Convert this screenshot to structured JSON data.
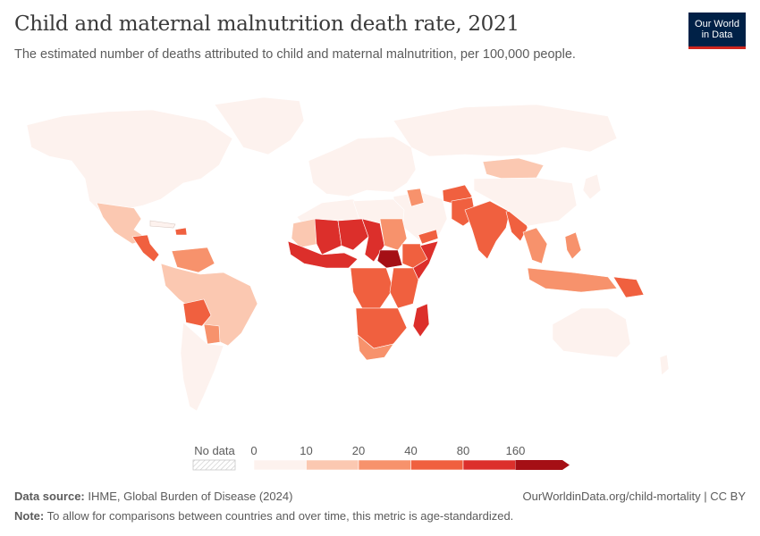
{
  "header": {
    "title": "Child and maternal malnutrition death rate, 2021",
    "subtitle": "The estimated number of deaths attributed to child and maternal malnutrition, per 100,000 people."
  },
  "logo": {
    "line1": "Our World",
    "line2": "in Data",
    "bg_color": "#002147",
    "accent_color": "#ce261e"
  },
  "legend": {
    "no_data_label": "No data",
    "ticks": [
      "0",
      "10",
      "20",
      "40",
      "80",
      "160"
    ],
    "colors": [
      "#fdf2ee",
      "#fbc8b1",
      "#f7926c",
      "#f0603f",
      "#dc2f2b",
      "#a50f15"
    ]
  },
  "footer": {
    "source_label": "Data source:",
    "source_text": "IHME, Global Burden of Disease (2024)",
    "note_label": "Note:",
    "note_text": "To allow for comparisons between countries and over time, this metric is age-standardized.",
    "link_text": "OurWorldinData.org/child-mortality | CC BY"
  },
  "map": {
    "regions": [
      {
        "name": "North America",
        "bin": 0
      },
      {
        "name": "Mexico",
        "bin": 1
      },
      {
        "name": "Central America",
        "bin": 3
      },
      {
        "name": "Haiti",
        "bin": 3
      },
      {
        "name": "Venezuela",
        "bin": 2
      },
      {
        "name": "South America",
        "bin": 1
      },
      {
        "name": "Bolivia",
        "bin": 3
      },
      {
        "name": "Paraguay",
        "bin": 2
      },
      {
        "name": "Argentina",
        "bin": 0
      },
      {
        "name": "Europe",
        "bin": 0
      },
      {
        "name": "Russia",
        "bin": 0
      },
      {
        "name": "Greenland",
        "bin": 0
      },
      {
        "name": "North Africa",
        "bin": 0
      },
      {
        "name": "Libya / Egypt",
        "bin": 0
      },
      {
        "name": "Mauritania",
        "bin": 1
      },
      {
        "name": "Mali",
        "bin": 4
      },
      {
        "name": "Niger",
        "bin": 4
      },
      {
        "name": "Chad",
        "bin": 4
      },
      {
        "name": "West Africa coast",
        "bin": 4
      },
      {
        "name": "Sudan",
        "bin": 2
      },
      {
        "name": "South Sudan",
        "bin": 5
      },
      {
        "name": "Ethiopia",
        "bin": 3
      },
      {
        "name": "Somalia",
        "bin": 4
      },
      {
        "name": "Central Africa",
        "bin": 3
      },
      {
        "name": "East Africa",
        "bin": 3
      },
      {
        "name": "Southern Africa",
        "bin": 3
      },
      {
        "name": "South Africa",
        "bin": 2
      },
      {
        "name": "Madagascar",
        "bin": 4
      },
      {
        "name": "Middle East",
        "bin": 0
      },
      {
        "name": "Yemen",
        "bin": 3
      },
      {
        "name": "Iraq",
        "bin": 2
      },
      {
        "name": "Afghanistan",
        "bin": 3
      },
      {
        "name": "Pakistan",
        "bin": 3
      },
      {
        "name": "India",
        "bin": 3
      },
      {
        "name": "Bangladesh / Myanmar",
        "bin": 3
      },
      {
        "name": "Mongolia",
        "bin": 1
      },
      {
        "name": "China",
        "bin": 0
      },
      {
        "name": "Southeast Asia",
        "bin": 2
      },
      {
        "name": "Philippines",
        "bin": 2
      },
      {
        "name": "Indonesia",
        "bin": 2
      },
      {
        "name": "Papua New Guinea",
        "bin": 3
      },
      {
        "name": "Japan",
        "bin": 0
      },
      {
        "name": "Australia",
        "bin": 0
      },
      {
        "name": "New Zealand",
        "bin": 0
      }
    ]
  }
}
